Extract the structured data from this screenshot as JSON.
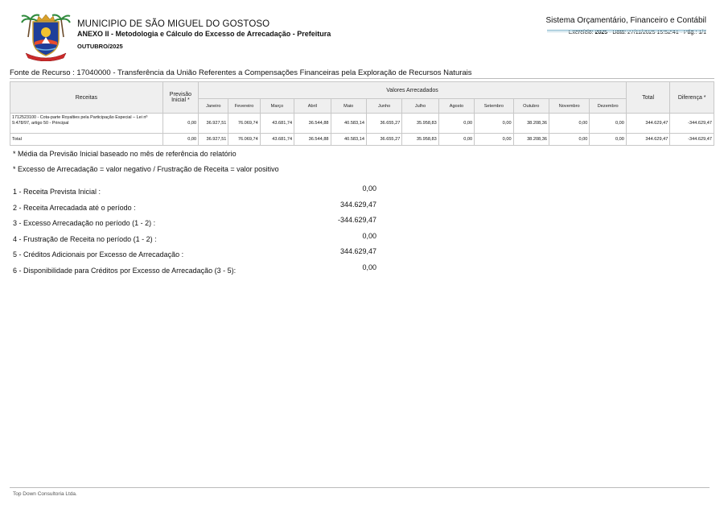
{
  "header": {
    "municipality": "MUNICIPIO DE SÃO MIGUEL DO GOSTOSO",
    "annex": "ANEXO II - Metodologia e Cálculo do Excesso de Arrecadação - Prefeitura",
    "month": "OUTUBRO/2025",
    "system": "Sistema Orçamentário, Financeiro e Contábil",
    "exercise_label": "Exercício:",
    "exercise_year": "2025",
    "date_text": "- Data: 27/11/2025 15:52:41 -  Pág.: 1/1",
    "logo": "municipal-coat-of-arms"
  },
  "fonte": "Fonte de Recurso : 17040000 - Transferência da União Referentes a Compensações Financeiras pela Exploração de Recursos Naturais",
  "table": {
    "col_receitas": "Receitas",
    "col_previsao": "Previsão Inicial *",
    "col_valores": "Valores Arrecadados",
    "col_total": "Total",
    "col_diferenca": "Diferença *",
    "months": [
      "Janeiro",
      "Fevereiro",
      "Março",
      "Abril",
      "Maio",
      "Junho",
      "Julho",
      "Agosto",
      "Setembro",
      "Outubro",
      "Novembro",
      "Dezembro"
    ],
    "rows": [
      {
        "desc": "1712523100 - Cota-parte Royalties pela Participação Especial – Lei nº 9.478/97, artigo 50 - Principal",
        "previsao": "0,00",
        "values": [
          "36.927,51",
          "76.069,74",
          "43.681,74",
          "36.544,88",
          "40.583,14",
          "36.655,27",
          "35.958,83",
          "0,00",
          "0,00",
          "38.208,36",
          "0,00",
          "0,00"
        ],
        "total": "344.629,47",
        "diferenca": "-344.629,47"
      },
      {
        "desc": "Total",
        "previsao": "0,00",
        "values": [
          "36.927,51",
          "76.069,74",
          "43.681,74",
          "36.544,88",
          "40.583,14",
          "36.655,27",
          "35.958,83",
          "0,00",
          "0,00",
          "38.208,36",
          "0,00",
          "0,00"
        ],
        "total": "344.629,47",
        "diferenca": "-344.629,47"
      }
    ]
  },
  "notes": [
    "* Média da Previsão Inicial baseado no mês de referência do relatório",
    "* Excesso de Arrecadação = valor negativo / Frustração de Receita = valor positivo"
  ],
  "summary": [
    {
      "label": "1 - Receita Prevista Inicial :",
      "value": "0,00"
    },
    {
      "label": "2 - Receita Arrecadada até o período :",
      "value": "344.629,47"
    },
    {
      "label": "3 - Excesso Arrecadação no período (1 - 2) :",
      "value": "-344.629,47"
    },
    {
      "label": "4 - Frustração de Receita no período (1 - 2) :",
      "value": "0,00"
    },
    {
      "label": "5 - Créditos Adicionais por Excesso de Arrecadação :",
      "value": "344.629,47"
    },
    {
      "label": "6 - Disponibilidade para Créditos por Excesso de Arrecadação (3 - 5):",
      "value": "0,00"
    }
  ],
  "footer": "Top Down Consultoria Ltda."
}
